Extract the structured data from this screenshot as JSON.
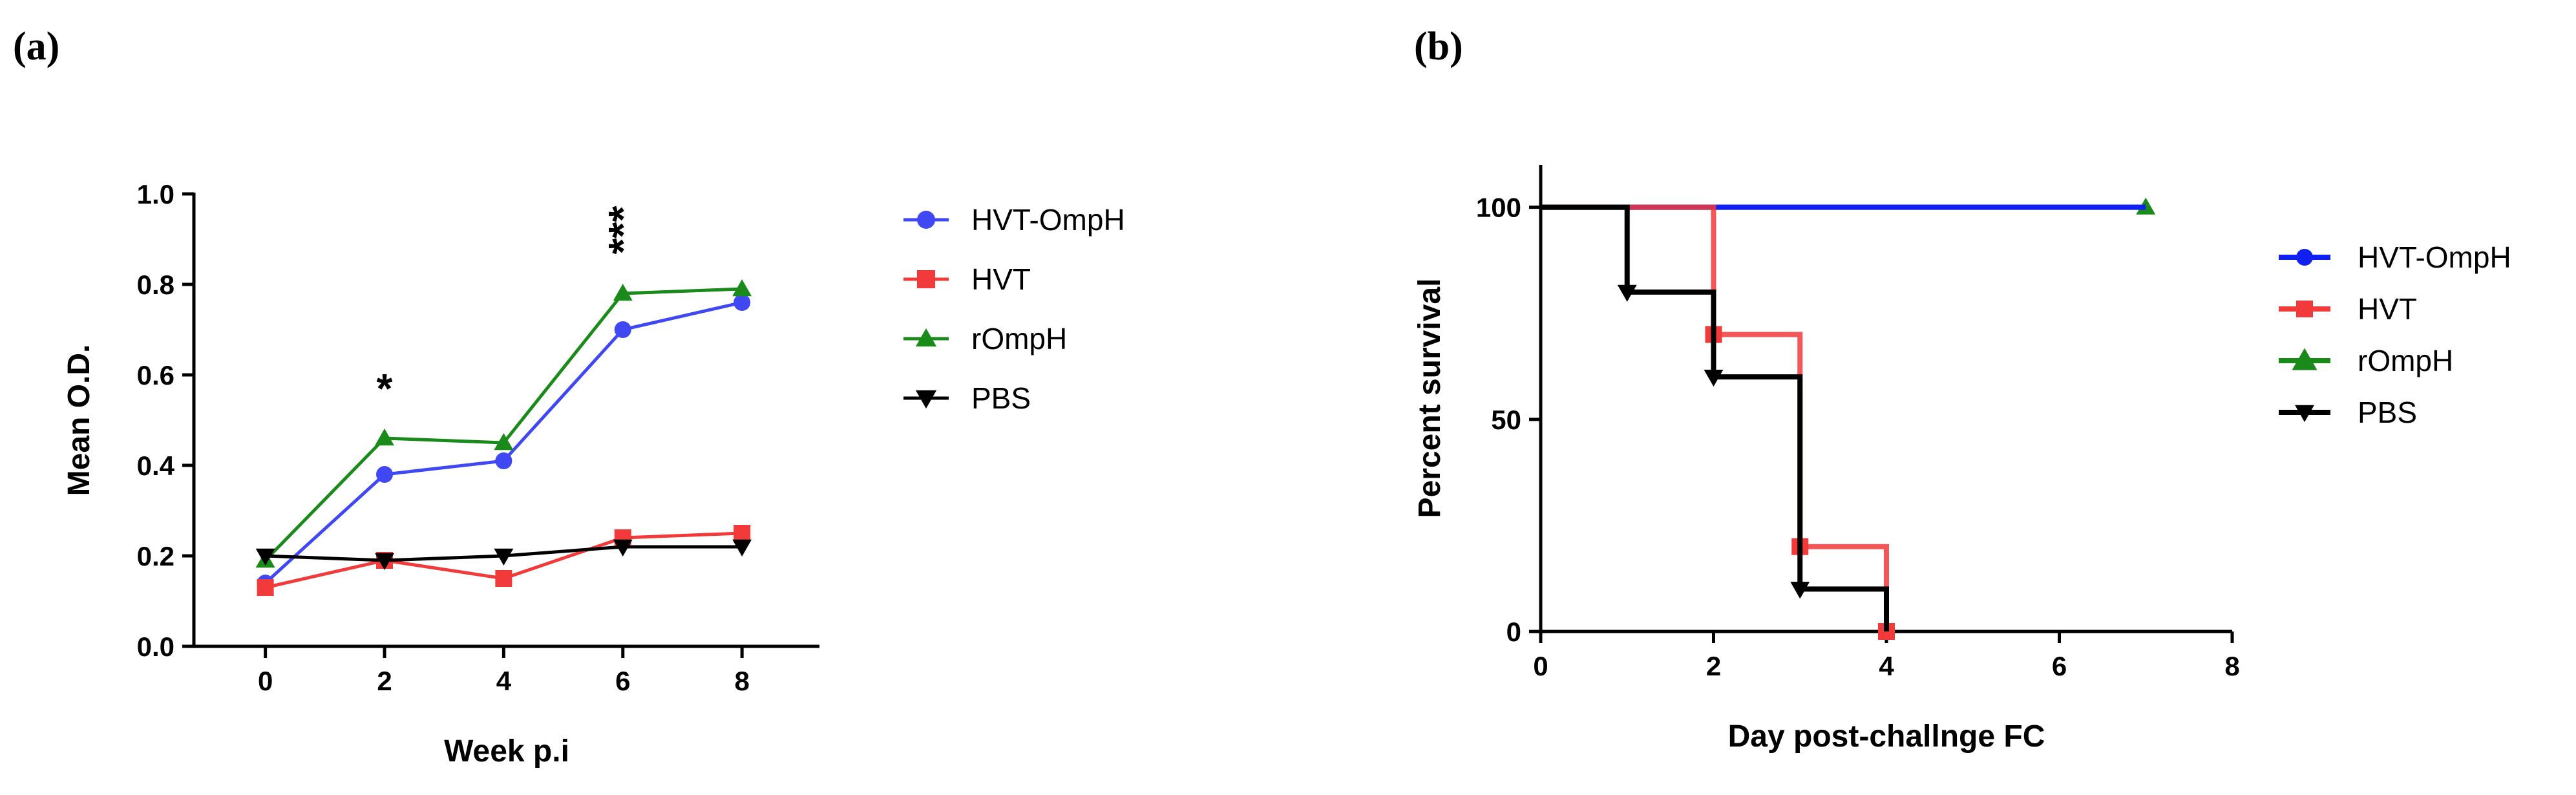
{
  "chart_data": [
    {
      "id": "a",
      "panel_label": "(a)",
      "type": "line",
      "xlabel": "Week p.i",
      "ylabel": "Mean O.D.",
      "xlim": [
        -1.2,
        9.3
      ],
      "ylim": [
        0,
        1.0
      ],
      "xticks": [
        "0",
        "2",
        "4",
        "6",
        "8"
      ],
      "yticks": [
        "0.0",
        "0.2",
        "0.4",
        "0.6",
        "0.8",
        "1.0"
      ],
      "x": [
        0,
        2,
        4,
        6,
        8
      ],
      "series": [
        {
          "name": "HVT-OmpH",
          "color": "#3f48f2",
          "marker": "circle",
          "values": [
            0.14,
            0.38,
            0.41,
            0.7,
            0.76
          ]
        },
        {
          "name": "HVT",
          "color": "#f23a3a",
          "marker": "square",
          "values": [
            0.13,
            0.19,
            0.15,
            0.24,
            0.25
          ]
        },
        {
          "name": "rOmpH",
          "color": "#1a8a1a",
          "marker": "triangle-up",
          "values": [
            0.19,
            0.46,
            0.45,
            0.78,
            0.79
          ]
        },
        {
          "name": "PBS",
          "color": "#000000",
          "marker": "triangle-down",
          "values": [
            0.2,
            0.19,
            0.2,
            0.22,
            0.22
          ]
        }
      ],
      "annotations": [
        {
          "x": 2,
          "y": 0.57,
          "text": "*"
        },
        {
          "x": 6,
          "y": 0.92,
          "text": "***"
        }
      ]
    },
    {
      "id": "b",
      "panel_label": "(b)",
      "type": "line",
      "subtype": "survival-step",
      "xlabel": "Day post-challnge FC",
      "ylabel": "Percent survival",
      "xlim": [
        0,
        8
      ],
      "ylim": [
        0,
        110
      ],
      "xticks": [
        "0",
        "2",
        "4",
        "6",
        "8"
      ],
      "yticks": [
        "0",
        "50",
        "100"
      ],
      "series": [
        {
          "name": "HVT-OmpH",
          "color": "#1020f0",
          "marker": "circle",
          "x": [
            0,
            7
          ],
          "values": [
            100,
            100
          ],
          "marked": []
        },
        {
          "name": "HVT",
          "color": "#f23a3a",
          "marker": "square",
          "x": [
            0,
            2,
            3,
            4
          ],
          "values": [
            100,
            70,
            20,
            0
          ],
          "marked": [
            1,
            2,
            3
          ]
        },
        {
          "name": "rOmpH",
          "color": "#1a8a1a",
          "marker": "triangle-up",
          "x": [
            0,
            7
          ],
          "values": [
            100,
            100
          ],
          "marked": [
            1
          ]
        },
        {
          "name": "PBS",
          "color": "#000000",
          "marker": "triangle-down",
          "x": [
            0,
            1,
            2,
            3,
            4
          ],
          "values": [
            100,
            80,
            60,
            10,
            0
          ],
          "marked": [
            1,
            2,
            3
          ]
        }
      ]
    }
  ]
}
